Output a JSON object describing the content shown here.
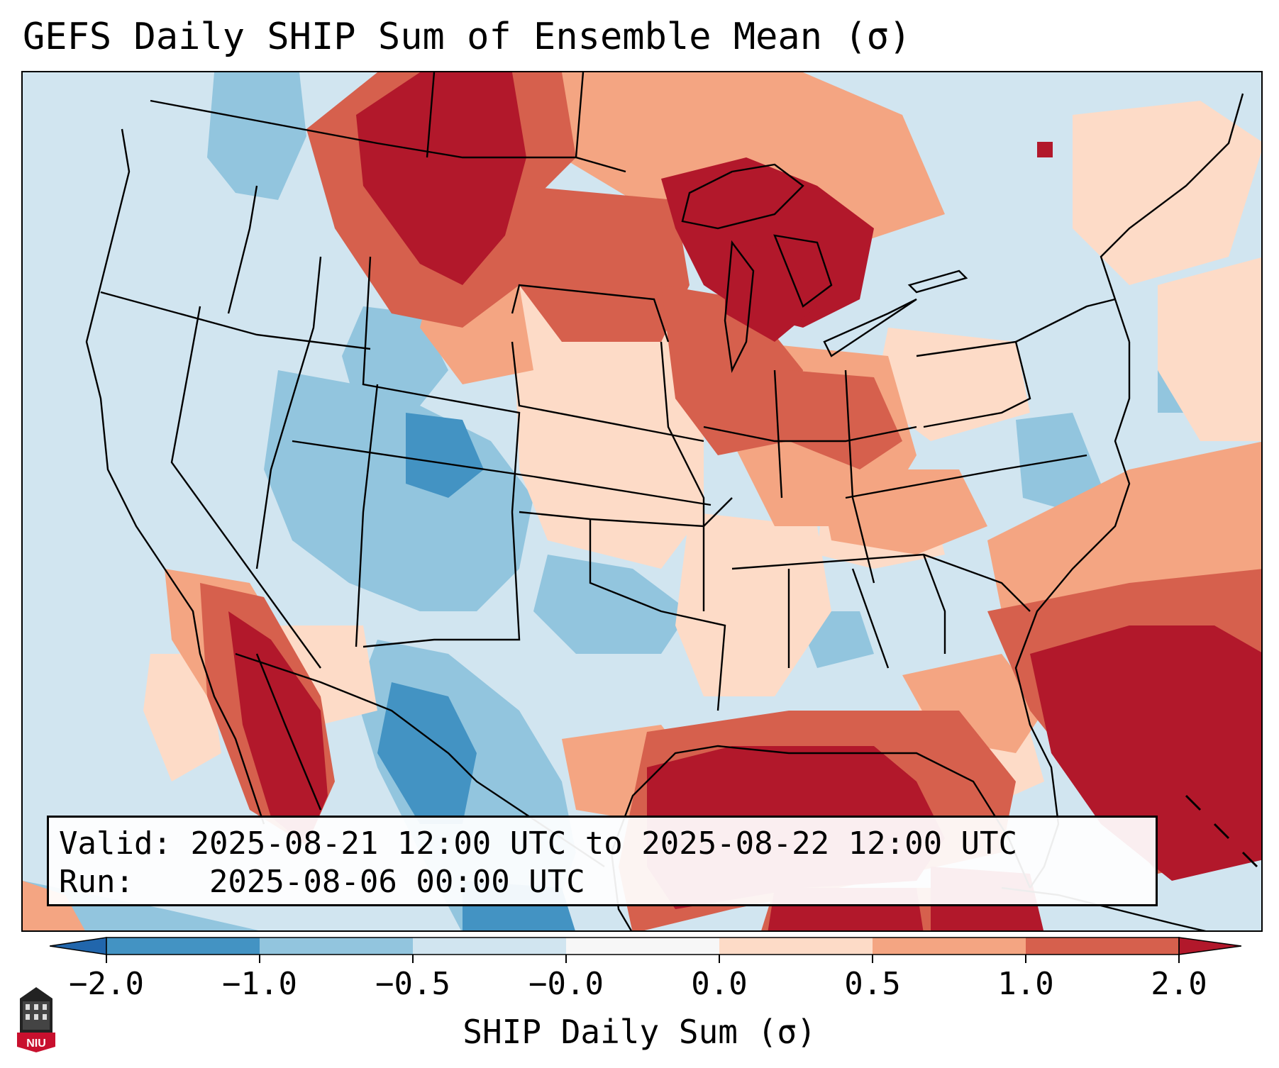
{
  "title": "GEFS Daily SHIP Sum of Ensemble Mean (σ)",
  "info": {
    "valid_label": "Valid:",
    "valid_value": "2025-08-21 12:00 UTC to 2025-08-22 12:00 UTC",
    "run_label": "Run:",
    "run_value": "2025-08-06 00:00 UTC"
  },
  "colorbar": {
    "label": "SHIP Daily Sum (σ)",
    "ticks": [
      "−2.0",
      "−1.0",
      "−0.5",
      "−0.0",
      "0.0",
      "0.5",
      "1.0",
      "2.0"
    ],
    "colors": [
      "#4393c3",
      "#92c5de",
      "#d1e5f0",
      "#f7f7f7",
      "#fddbc7",
      "#f4a582",
      "#d6604d",
      "#b2182b"
    ],
    "extend_low_color": "#2166ac",
    "extend_high_color": "#b2182b"
  },
  "map_colors": {
    "ocean_base": "#d1e5f0",
    "strong_negative": "#4393c3",
    "negative": "#92c5de",
    "near_zero_neg": "#d1e5f0",
    "near_zero_pos": "#fddbc7",
    "positive": "#f4a582",
    "strong_positive": "#d6604d",
    "very_strong_positive": "#b2182b",
    "borders": "#000000"
  },
  "logo": {
    "text": "NIU",
    "color": "#c8102e"
  }
}
